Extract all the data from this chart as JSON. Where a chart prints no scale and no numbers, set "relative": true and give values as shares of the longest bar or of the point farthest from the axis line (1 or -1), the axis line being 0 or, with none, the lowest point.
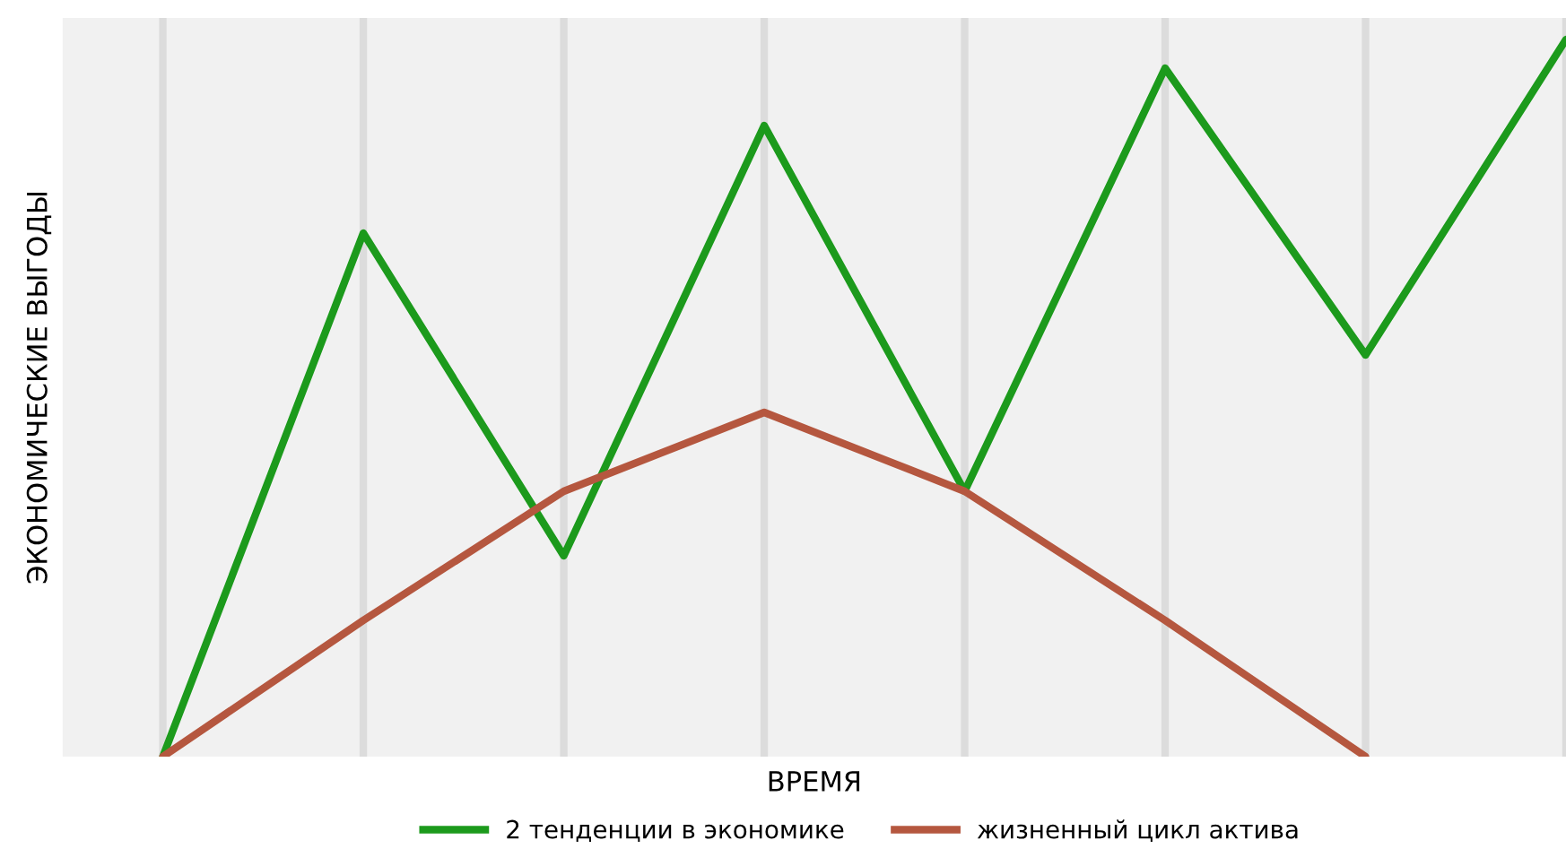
{
  "chart_data": {
    "type": "line",
    "relative": true,
    "xlabel": "ВРЕМЯ",
    "ylabel": "ЭКОНОМИЧЕСКИЕ ВЫГОДЫ",
    "categories": [
      null,
      null,
      null,
      null,
      null,
      null,
      null,
      null
    ],
    "series": [
      {
        "name": "2 тенденции в экономике",
        "color": "#1c9a1c",
        "values": [
          0,
          0.73,
          0.28,
          0.88,
          0.37,
          0.96,
          0.56,
          1
        ]
      },
      {
        "name": "жизненный цикл актива",
        "color": "#b5573f",
        "values": [
          0,
          0.19,
          0.37,
          0.48,
          0.37,
          0.19,
          0,
          null
        ]
      }
    ],
    "grid": "x",
    "legend": "bottom",
    "marker": "none",
    "line_style": "solid"
  }
}
